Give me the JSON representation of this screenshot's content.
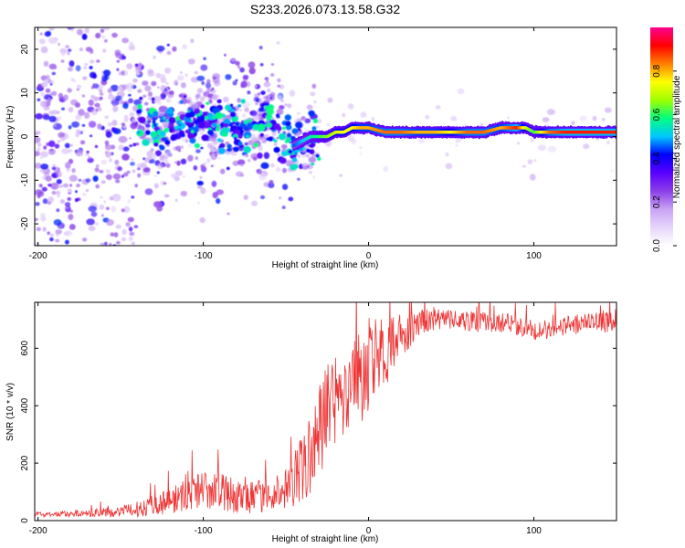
{
  "figure": {
    "title": "S233.2026.073.13.58.G32"
  },
  "chart_data": [
    {
      "type": "heatmap",
      "panel": "spectrogram",
      "xlabel": "Height of straight line (km)",
      "ylabel": "Frequency (Hz)",
      "xlim": [
        -202,
        150
      ],
      "ylim": [
        -25,
        25
      ],
      "xticks": [
        -200,
        -100,
        0,
        100
      ],
      "yticks": [
        -20,
        -10,
        0,
        10,
        20
      ],
      "colorbar": {
        "label": "Normalized spectral amplitude",
        "range": [
          0,
          1
        ],
        "ticks": [
          0.0,
          0.2,
          0.4,
          0.6,
          0.8
        ],
        "colormap": [
          "#ffffff",
          "#e6d6fb",
          "#c9a3f5",
          "#8b3fe8",
          "#5a00ff",
          "#0000ff",
          "#00c8ff",
          "#00ff80",
          "#a0ff00",
          "#ffff00",
          "#ff8000",
          "#ff0000",
          "#ff0090"
        ]
      },
      "ridge": {
        "description": "Spectral ridge of the signal versus height",
        "x": [
          -140,
          -130,
          -120,
          -110,
          -100,
          -90,
          -80,
          -70,
          -60,
          -50,
          -45,
          -40,
          -35,
          -30,
          -25,
          -20,
          -15,
          -10,
          -5,
          0,
          10,
          20,
          30,
          40,
          50,
          60,
          70,
          80,
          90,
          95,
          100,
          105,
          110,
          120,
          130,
          140,
          150
        ],
        "y": [
          4,
          2,
          3,
          3,
          4,
          3,
          2,
          3,
          4,
          -1,
          -2,
          -1,
          0,
          0,
          0,
          1,
          1,
          2,
          2,
          2,
          1,
          1,
          1,
          1,
          1,
          1,
          1,
          2,
          2,
          2,
          1,
          1,
          1,
          1,
          1,
          1,
          1
        ],
        "amplitude": [
          0.3,
          0.35,
          0.35,
          0.4,
          0.4,
          0.35,
          0.35,
          0.35,
          0.3,
          0.4,
          0.45,
          0.5,
          0.55,
          0.6,
          0.65,
          0.7,
          0.75,
          0.75,
          0.8,
          0.8,
          0.85,
          0.85,
          0.8,
          0.8,
          0.75,
          0.85,
          0.85,
          0.8,
          0.9,
          0.7,
          0.6,
          0.75,
          0.85,
          0.9,
          0.9,
          0.9,
          0.9
        ]
      }
    },
    {
      "type": "line",
      "panel": "snr",
      "xlabel": "Height of straight line (km)",
      "ylabel": "SNR (10 * v/v)",
      "xlim": [
        -202,
        150
      ],
      "ylim": [
        0,
        760
      ],
      "xticks": [
        -200,
        -100,
        0,
        100
      ],
      "yticks": [
        0,
        200,
        400,
        600
      ],
      "line_color": "#ee3333",
      "series": [
        {
          "name": "SNR",
          "x": [
            -202,
            -190,
            -180,
            -170,
            -160,
            -150,
            -140,
            -130,
            -120,
            -110,
            -100,
            -90,
            -80,
            -70,
            -60,
            -50,
            -45,
            -40,
            -35,
            -30,
            -25,
            -20,
            -15,
            -10,
            -5,
            0,
            5,
            10,
            15,
            20,
            25,
            30,
            40,
            50,
            60,
            70,
            80,
            90,
            100,
            110,
            120,
            130,
            140,
            150
          ],
          "y": [
            22,
            22,
            25,
            26,
            28,
            32,
            40,
            55,
            70,
            90,
            110,
            100,
            85,
            80,
            90,
            110,
            140,
            180,
            230,
            300,
            380,
            420,
            440,
            470,
            500,
            540,
            560,
            580,
            600,
            640,
            660,
            690,
            700,
            700,
            695,
            690,
            690,
            680,
            660,
            670,
            680,
            685,
            690,
            690
          ],
          "noise_amplitude": [
            8,
            8,
            10,
            10,
            14,
            16,
            22,
            30,
            40,
            50,
            55,
            55,
            50,
            45,
            50,
            60,
            80,
            100,
            120,
            140,
            150,
            160,
            150,
            140,
            140,
            130,
            120,
            100,
            90,
            70,
            50,
            40,
            30,
            30,
            30,
            30,
            30,
            30,
            30,
            30,
            30,
            30,
            30,
            30
          ]
        }
      ]
    }
  ]
}
